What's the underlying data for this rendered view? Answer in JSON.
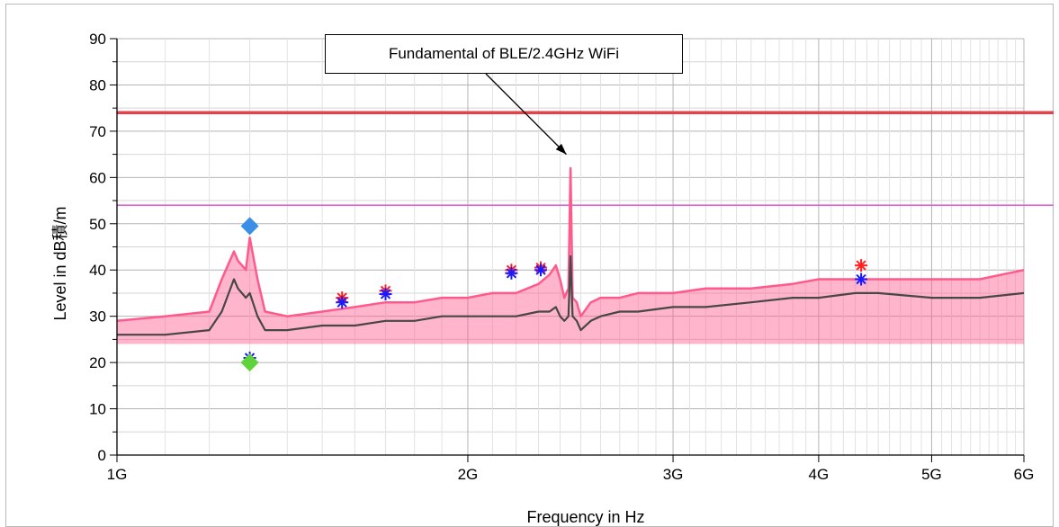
{
  "chart_data": {
    "type": "line",
    "title": "",
    "xlabel": "Frequency in Hz",
    "ylabel": "Level in dB積/m",
    "x_scale": "log",
    "xlim": [
      1000000000,
      6000000000
    ],
    "ylim": [
      0,
      90
    ],
    "grid": true,
    "x_ticks": [
      {
        "value": 1000000000,
        "label": "1G"
      },
      {
        "value": 2000000000,
        "label": "2G"
      },
      {
        "value": 3000000000,
        "label": "3G"
      },
      {
        "value": 4000000000,
        "label": "4G"
      },
      {
        "value": 5000000000,
        "label": "5G"
      },
      {
        "value": 6000000000,
        "label": "6G"
      }
    ],
    "y_ticks": [
      0,
      10,
      20,
      30,
      40,
      50,
      60,
      70,
      80,
      90
    ],
    "limit_lines": [
      {
        "value": 74,
        "color": "#e8404a"
      },
      {
        "value": 54,
        "color": "#e060e0"
      }
    ],
    "series": [
      {
        "style": "peak-trace",
        "color": "#ff5a8c",
        "x": [
          1000000000,
          1100000000,
          1200000000,
          1230000000,
          1260000000,
          1270000000,
          1290000000,
          1300000000,
          1320000000,
          1340000000,
          1400000000,
          1500000000,
          1600000000,
          1700000000,
          1800000000,
          1900000000,
          2000000000,
          2100000000,
          2200000000,
          2300000000,
          2350000000,
          2380000000,
          2400000000,
          2420000000,
          2440000000,
          2450000000,
          2460000000,
          2480000000,
          2500000000,
          2550000000,
          2600000000,
          2700000000,
          2800000000,
          3000000000,
          3200000000,
          3500000000,
          3800000000,
          4000000000,
          4300000000,
          4500000000,
          5000000000,
          5500000000,
          6000000000
        ],
        "values": [
          29,
          30,
          31,
          38,
          44,
          42,
          40,
          47,
          38,
          31,
          30,
          31,
          32,
          33,
          33,
          34,
          34,
          35,
          35,
          37,
          39,
          41,
          38,
          34,
          36,
          62,
          34,
          33,
          30,
          33,
          34,
          34,
          35,
          35,
          36,
          36,
          37,
          38,
          38,
          38,
          38,
          38,
          40
        ]
      },
      {
        "style": "average-trace",
        "color": "#474747",
        "x": [
          1000000000,
          1100000000,
          1200000000,
          1230000000,
          1260000000,
          1270000000,
          1290000000,
          1300000000,
          1320000000,
          1340000000,
          1400000000,
          1500000000,
          1600000000,
          1700000000,
          1800000000,
          1900000000,
          2000000000,
          2100000000,
          2200000000,
          2300000000,
          2350000000,
          2380000000,
          2400000000,
          2420000000,
          2440000000,
          2450000000,
          2460000000,
          2480000000,
          2500000000,
          2550000000,
          2600000000,
          2700000000,
          2800000000,
          3000000000,
          3200000000,
          3500000000,
          3800000000,
          4000000000,
          4300000000,
          4500000000,
          5000000000,
          5500000000,
          6000000000
        ],
        "values": [
          26,
          26,
          27,
          31,
          38,
          36,
          34,
          35,
          30,
          27,
          27,
          28,
          28,
          29,
          29,
          30,
          30,
          30,
          30,
          31,
          31,
          32,
          30,
          29,
          30,
          43,
          30,
          29,
          27,
          29,
          30,
          31,
          31,
          32,
          32,
          33,
          34,
          34,
          35,
          35,
          34,
          34,
          35
        ]
      }
    ],
    "markers": [
      {
        "x": 1300000000,
        "y": 49.5,
        "shape": "diamond",
        "color": "#3a8ee6"
      },
      {
        "x": 1300000000,
        "y": 21,
        "shape": "asterisk",
        "color": "#1a1aff"
      },
      {
        "x": 1300000000,
        "y": 20,
        "shape": "diamond",
        "color": "#5fd43a"
      },
      {
        "x": 1560000000,
        "y": 34,
        "shape": "asterisk",
        "color": "#ff2020"
      },
      {
        "x": 1560000000,
        "y": 33,
        "shape": "asterisk",
        "color": "#1a1aff"
      },
      {
        "x": 1700000000,
        "y": 35.5,
        "shape": "asterisk",
        "color": "#ff2020"
      },
      {
        "x": 1700000000,
        "y": 34.8,
        "shape": "asterisk",
        "color": "#1a1aff"
      },
      {
        "x": 2180000000,
        "y": 40,
        "shape": "asterisk",
        "color": "#ff2020"
      },
      {
        "x": 2180000000,
        "y": 39.3,
        "shape": "asterisk",
        "color": "#1a1aff"
      },
      {
        "x": 2310000000,
        "y": 40.5,
        "shape": "asterisk",
        "color": "#ff2020"
      },
      {
        "x": 2310000000,
        "y": 40,
        "shape": "asterisk",
        "color": "#1a1aff"
      },
      {
        "x": 4350000000,
        "y": 41,
        "shape": "asterisk",
        "color": "#ff2020"
      },
      {
        "x": 4350000000,
        "y": 38,
        "shape": "asterisk",
        "color": "#1a1aff"
      }
    ],
    "annotation": {
      "text": "Fundamental of BLE/2.4GHz WiFi",
      "arrow_to": {
        "x": 2430000000,
        "y": 65
      }
    }
  }
}
